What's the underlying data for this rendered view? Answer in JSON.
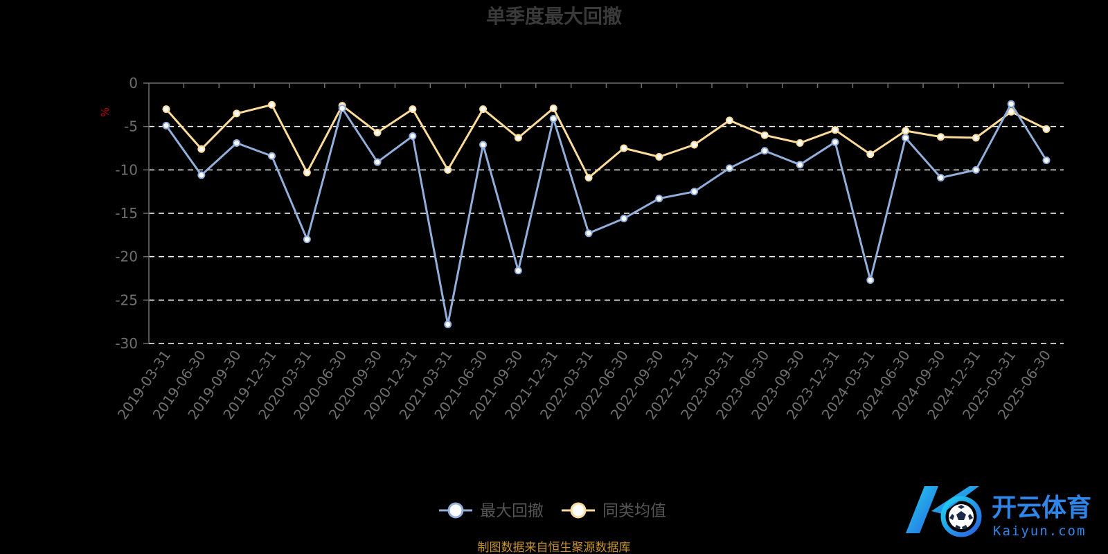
{
  "chart_data": {
    "type": "line",
    "title": "单季度最大回撤",
    "ylabel": "%",
    "xlabel": "",
    "ylim": [
      -30,
      0
    ],
    "yticks": [
      0,
      -5,
      -10,
      -15,
      -20,
      -25,
      -30
    ],
    "grid": true,
    "legend_position": "bottom-center",
    "categories": [
      "2019-03-31",
      "2019-06-30",
      "2019-09-30",
      "2019-12-31",
      "2020-03-31",
      "2020-06-30",
      "2020-09-30",
      "2020-12-31",
      "2021-03-31",
      "2021-06-30",
      "2021-09-30",
      "2021-12-31",
      "2022-03-31",
      "2022-06-30",
      "2022-09-30",
      "2022-12-31",
      "2023-03-31",
      "2023-06-30",
      "2023-09-30",
      "2023-12-31",
      "2024-03-31",
      "2024-06-30",
      "2024-09-30",
      "2024-12-31",
      "2025-03-31",
      "2025-06-30"
    ],
    "series": [
      {
        "name": "最大回撤",
        "color": "#92aedb",
        "values": [
          -4.9,
          -10.6,
          -6.9,
          -8.4,
          -18.0,
          -2.9,
          -9.1,
          -6.1,
          -27.8,
          -7.1,
          -21.6,
          -4.1,
          -17.3,
          -15.6,
          -13.3,
          -12.5,
          -9.8,
          -7.8,
          -9.4,
          -6.8,
          -22.7,
          -6.3,
          -10.9,
          -10.0,
          -2.4,
          -8.9
        ]
      },
      {
        "name": "同类均值",
        "color": "#fddb9a",
        "values": [
          -3.0,
          -7.6,
          -3.5,
          -2.5,
          -10.3,
          -2.6,
          -5.7,
          -3.0,
          -10.0,
          -3.0,
          -6.3,
          -2.9,
          -10.9,
          -7.5,
          -8.5,
          -7.1,
          -4.3,
          -6.0,
          -6.9,
          -5.4,
          -8.2,
          -5.5,
          -6.2,
          -6.3,
          -3.3,
          -5.3
        ]
      }
    ]
  },
  "footer": {
    "source": "制图数据来自恒生聚源数据库"
  },
  "watermark": {
    "logo_text": "开云体育",
    "logo_sub": "Kaiyun.com",
    "logo_icon": "soccer-ball-icon"
  }
}
